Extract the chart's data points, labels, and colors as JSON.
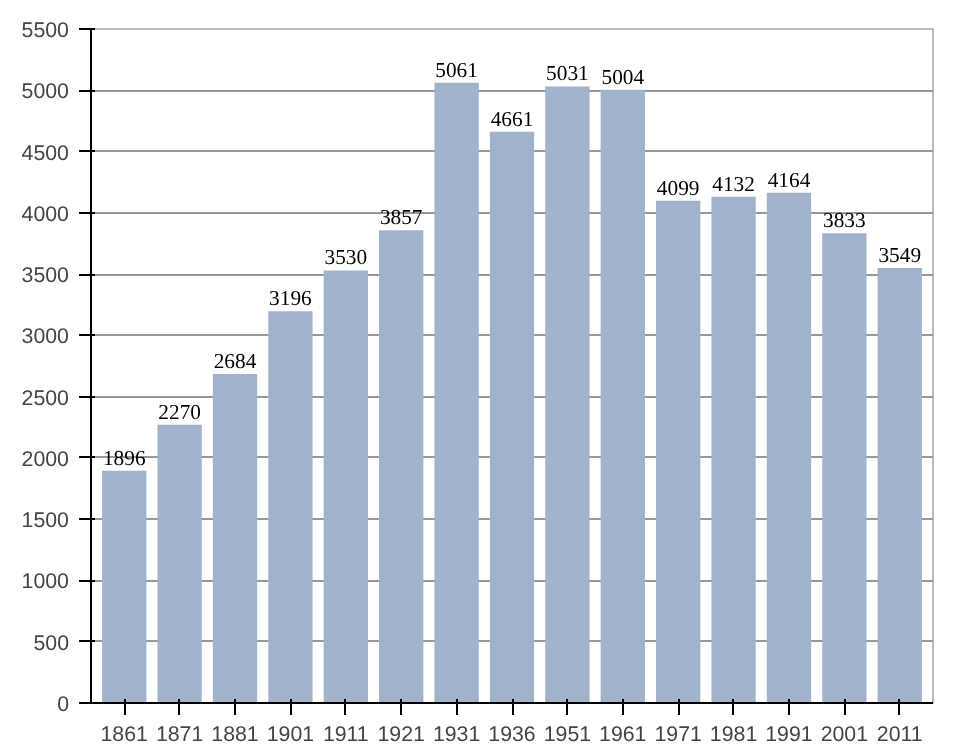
{
  "chart_data": {
    "type": "bar",
    "categories": [
      "1861",
      "1871",
      "1881",
      "1901",
      "1911",
      "1921",
      "1931",
      "1936",
      "1951",
      "1961",
      "1971",
      "1981",
      "1991",
      "2001",
      "2011"
    ],
    "values": [
      1896,
      2270,
      2684,
      3196,
      3530,
      3857,
      5061,
      4661,
      5031,
      5004,
      4099,
      4132,
      4164,
      3833,
      3549
    ],
    "color": "#a0b3cb",
    "ylim": [
      0,
      5500
    ],
    "yticks": [
      0,
      500,
      1000,
      1500,
      2000,
      2500,
      3000,
      3500,
      4000,
      4500,
      5000,
      5500
    ],
    "grid": "y",
    "data_labels": true
  }
}
